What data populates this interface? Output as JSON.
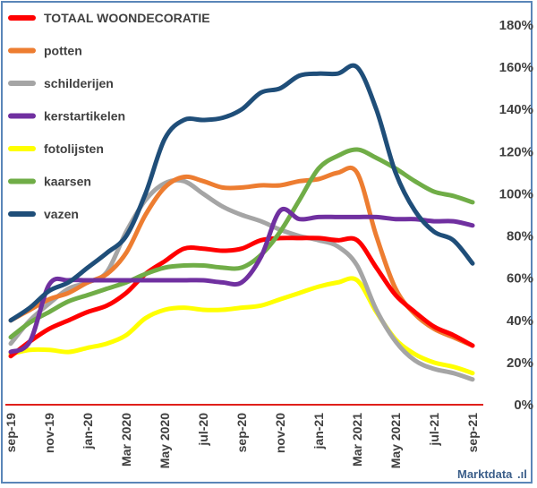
{
  "brand": {
    "name": "Marktdata",
    "suffix": ".ıl"
  },
  "chart_data": {
    "type": "line",
    "title": "",
    "xlabel": "",
    "ylabel": "",
    "ylim": [
      0,
      180
    ],
    "y_unit": "%",
    "yticks": [
      "0%",
      "20%",
      "40%",
      "60%",
      "80%",
      "100%",
      "120%",
      "140%",
      "160%",
      "180%"
    ],
    "x_tick_labels": [
      "sep-19",
      "nov-19",
      "jan-20",
      "Mar 2020",
      "May 2020",
      "jul-20",
      "sep-20",
      "nov-20",
      "jan-21",
      "Mar 2021",
      "May 2021",
      "jul-21",
      "sep-21"
    ],
    "x_tick_positions": [
      0,
      2,
      4,
      6,
      8,
      10,
      12,
      14,
      16,
      18,
      20,
      22,
      24
    ],
    "x_range": [
      0,
      24
    ],
    "series": [
      {
        "name": "TOTAAL WOONDECORATIE",
        "color": "#ff0000",
        "x": [
          0,
          1,
          2,
          3,
          4,
          5,
          6,
          7,
          8,
          9,
          10,
          11,
          12,
          13,
          14,
          15,
          16,
          17,
          18,
          19,
          20,
          21,
          22,
          23,
          24
        ],
        "y": [
          23,
          30,
          36,
          40,
          44,
          47,
          53,
          62,
          68,
          74,
          74,
          73,
          74,
          78,
          79,
          79,
          79,
          78,
          78,
          65,
          52,
          44,
          37,
          33,
          28
        ]
      },
      {
        "name": "potten",
        "color": "#ed7d31",
        "x": [
          0,
          1,
          2,
          3,
          4,
          5,
          6,
          7,
          8,
          9,
          10,
          11,
          12,
          13,
          14,
          15,
          16,
          17,
          18,
          19,
          20,
          21,
          22,
          23,
          24
        ],
        "y": [
          40,
          45,
          50,
          53,
          58,
          62,
          72,
          90,
          103,
          108,
          106,
          103,
          103,
          104,
          104,
          106,
          107,
          110,
          110,
          80,
          55,
          43,
          36,
          32,
          28
        ]
      },
      {
        "name": "schilderijen",
        "color": "#a5a5a5",
        "x": [
          0,
          1,
          2,
          3,
          4,
          5,
          6,
          7,
          8,
          9,
          10,
          11,
          12,
          13,
          14,
          15,
          16,
          17,
          18,
          19,
          20,
          21,
          22,
          23,
          24
        ],
        "y": [
          29,
          40,
          48,
          55,
          58,
          63,
          82,
          97,
          105,
          106,
          100,
          94,
          90,
          87,
          83,
          80,
          78,
          75,
          66,
          45,
          30,
          21,
          17,
          15,
          12
        ]
      },
      {
        "name": "kerstartikelen",
        "color": "#7030a0",
        "x": [
          0,
          1,
          2,
          3,
          4,
          5,
          6,
          7,
          8,
          9,
          10,
          11,
          12,
          13,
          14,
          15,
          16,
          17,
          18,
          19,
          20,
          21,
          22,
          23,
          24
        ],
        "y": [
          25,
          30,
          57,
          59,
          59,
          59,
          59,
          59,
          59,
          59,
          59,
          58,
          58,
          70,
          92,
          88,
          89,
          89,
          89,
          89,
          88,
          88,
          87,
          87,
          85
        ]
      },
      {
        "name": "fotolijsten",
        "color": "#ffff00",
        "x": [
          0,
          1,
          2,
          3,
          4,
          5,
          6,
          7,
          8,
          9,
          10,
          11,
          12,
          13,
          14,
          15,
          16,
          17,
          18,
          19,
          20,
          21,
          22,
          23,
          24
        ],
        "y": [
          24,
          26,
          26,
          25,
          27,
          29,
          33,
          41,
          45,
          46,
          45,
          45,
          46,
          47,
          50,
          53,
          56,
          58,
          59,
          44,
          31,
          24,
          20,
          18,
          15
        ]
      },
      {
        "name": "kaarsen",
        "color": "#70ad47",
        "x": [
          0,
          1,
          2,
          3,
          4,
          5,
          6,
          7,
          8,
          9,
          10,
          11,
          12,
          13,
          14,
          15,
          16,
          17,
          18,
          19,
          20,
          21,
          22,
          23,
          24
        ],
        "y": [
          32,
          39,
          44,
          49,
          52,
          55,
          58,
          62,
          65,
          66,
          66,
          65,
          65,
          71,
          82,
          97,
          112,
          118,
          121,
          117,
          112,
          106,
          101,
          99,
          96
        ]
      },
      {
        "name": "vazen",
        "color": "#1f4e79",
        "x": [
          0,
          1,
          2,
          3,
          4,
          5,
          6,
          7,
          8,
          9,
          10,
          11,
          12,
          13,
          14,
          15,
          16,
          17,
          18,
          19,
          20,
          21,
          22,
          23,
          24
        ],
        "y": [
          40,
          46,
          54,
          58,
          65,
          72,
          80,
          100,
          126,
          135,
          135,
          136,
          140,
          148,
          150,
          156,
          157,
          157,
          160,
          140,
          110,
          92,
          82,
          78,
          67
        ]
      }
    ],
    "legend": {
      "placement": "top-left"
    }
  }
}
